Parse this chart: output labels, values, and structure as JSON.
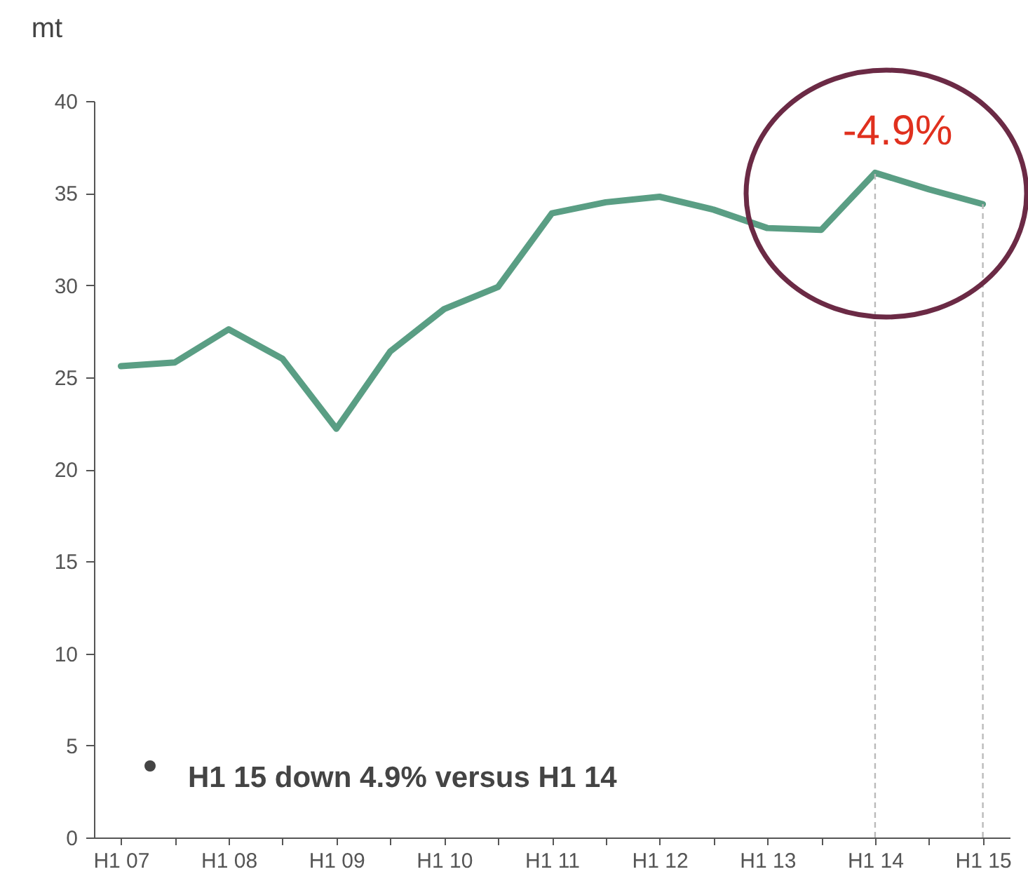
{
  "chart_data": {
    "type": "line",
    "ylabel": "mt",
    "categories": [
      "H1 07",
      null,
      "H1 08",
      null,
      "H1 09",
      null,
      "H1 10",
      null,
      "H1 11",
      null,
      "H1 12",
      null,
      "H1 13",
      null,
      "H1 14",
      null,
      "H1 15"
    ],
    "series": [
      {
        "color": "#5a9e84",
        "values": [
          25.6,
          25.8,
          27.6,
          26.0,
          22.2,
          26.4,
          28.7,
          29.9,
          33.9,
          34.5,
          34.8,
          34.1,
          33.1,
          33.0,
          36.1,
          35.2,
          34.4
        ]
      }
    ],
    "ylim": [
      0,
      40
    ],
    "yticks": [
      0,
      5,
      10,
      15,
      20,
      25,
      30,
      35,
      40
    ],
    "grid": false,
    "marker": "none",
    "line_style": "solid",
    "ref_lines": [
      {
        "axis": "x",
        "value": "H1 14",
        "color": "#bbbbbb",
        "line_style": "dashed"
      },
      {
        "axis": "x",
        "value": "H1 15",
        "color": "#bbbbbb",
        "line_style": "dashed"
      }
    ],
    "annotations": [
      "-4.9%",
      "H1 15 down 4.9% versus H1 14"
    ]
  }
}
